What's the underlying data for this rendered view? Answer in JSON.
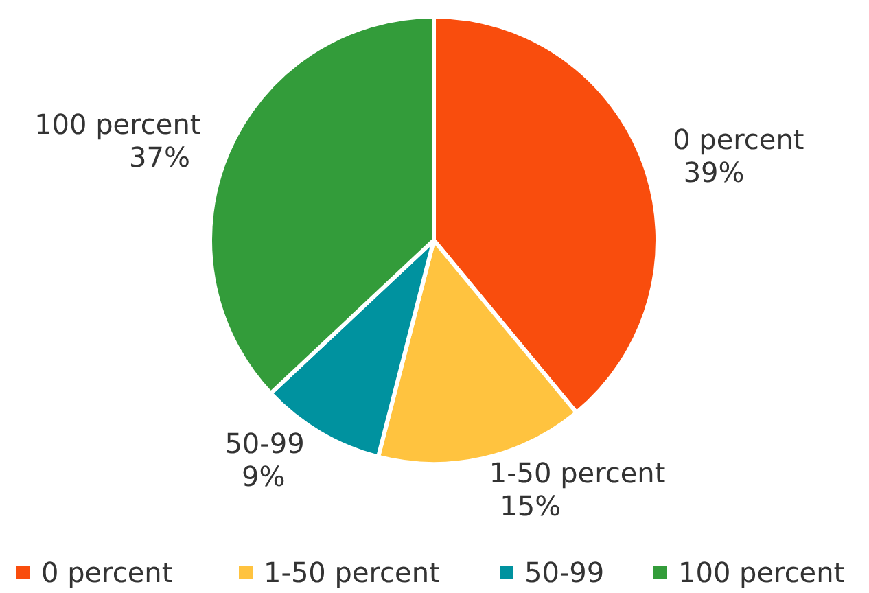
{
  "chart_data": {
    "type": "pie",
    "categories": [
      "0 percent",
      "1-50 percent",
      "50-99",
      "100 percent"
    ],
    "values": [
      39,
      15,
      9,
      37
    ],
    "colors": [
      "#f94d0d",
      "#ffc33f",
      "#00929f",
      "#339c3a"
    ],
    "value_labels": [
      "39%",
      "15%",
      "9%",
      "37%"
    ],
    "legend": "bottom"
  }
}
